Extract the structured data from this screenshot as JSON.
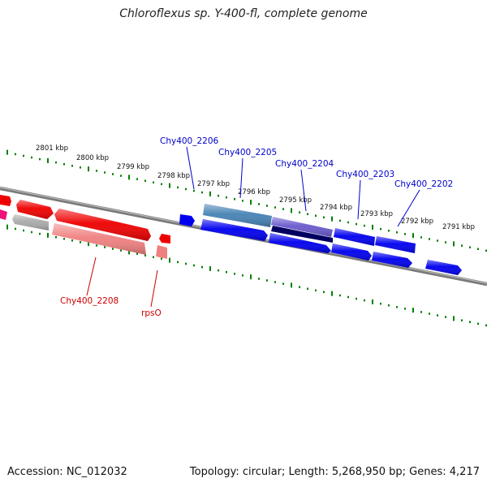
{
  "title": "Chloroflexus sp. Y-400-fl, complete genome",
  "ruler": {
    "labels": [
      "2801 kbp",
      "2800 kbp",
      "2799 kbp",
      "2798 kbp",
      "2797 kbp",
      "2796 kbp",
      "2795 kbp",
      "2794 kbp",
      "2793 kbp",
      "2792 kbp",
      "2791 kbp"
    ]
  },
  "genes": {
    "chy400_2206": "Chy400_2206",
    "chy400_2205": "Chy400_2205",
    "chy400_2204": "Chy400_2204",
    "chy400_2203": "Chy400_2203",
    "chy400_2202": "Chy400_2202",
    "chy400_2208": "Chy400_2208",
    "rpso": "rpsO"
  },
  "colors": {
    "forward_gene": "#0000ee",
    "reverse_gene": "#ee0000",
    "ruler": "#008000",
    "backbone": "#7a7a7a"
  },
  "footer": {
    "accession": "Accession: NC_012032",
    "stats": "Topology: circular; Length: 5,268,950 bp; Genes: 4,217"
  }
}
